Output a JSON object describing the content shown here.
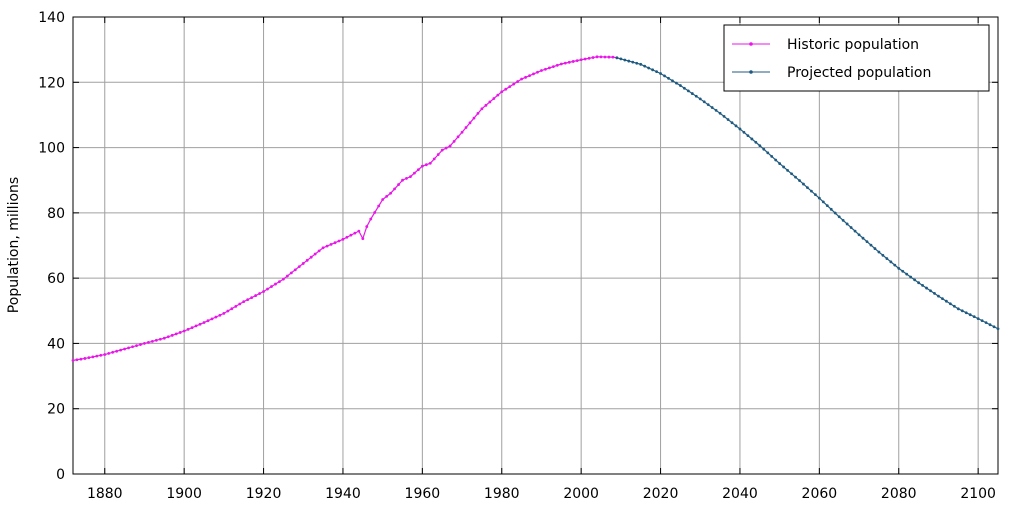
{
  "chart_data": {
    "type": "line",
    "title": "",
    "xlabel": "",
    "ylabel": "Population, millions",
    "xlim": [
      1872,
      2105
    ],
    "ylim": [
      0,
      140
    ],
    "x_ticks": [
      1880,
      1900,
      1920,
      1940,
      1960,
      1980,
      2000,
      2020,
      2040,
      2060,
      2080,
      2100
    ],
    "y_ticks": [
      0,
      20,
      40,
      60,
      80,
      100,
      120,
      140
    ],
    "grid": true,
    "legend_position": "top-right",
    "series": [
      {
        "name": "Historic population",
        "color": "#e817e8",
        "x": [
          1872,
          1875,
          1880,
          1885,
          1890,
          1895,
          1900,
          1905,
          1910,
          1915,
          1920,
          1925,
          1930,
          1935,
          1940,
          1943,
          1944,
          1945,
          1946,
          1947,
          1950,
          1952,
          1955,
          1957,
          1960,
          1962,
          1965,
          1967,
          1970,
          1975,
          1980,
          1985,
          1990,
          1995,
          2000,
          2004,
          2008,
          2009
        ],
        "y": [
          34.8,
          35.4,
          36.6,
          38.3,
          40.0,
          41.6,
          43.8,
          46.4,
          49.2,
          52.8,
          55.9,
          59.7,
          64.5,
          69.3,
          71.9,
          73.8,
          74.4,
          72.1,
          75.8,
          78.1,
          84.1,
          86.0,
          90.0,
          91.1,
          94.3,
          95.2,
          99.2,
          100.5,
          104.7,
          111.9,
          117.1,
          121.0,
          123.6,
          125.6,
          126.9,
          127.8,
          127.7,
          127.5
        ]
      },
      {
        "name": "Projected population",
        "color": "#1f5a80",
        "x": [
          2009,
          2015,
          2020,
          2025,
          2030,
          2035,
          2040,
          2045,
          2050,
          2055,
          2060,
          2065,
          2070,
          2075,
          2080,
          2085,
          2090,
          2095,
          2100,
          2105
        ],
        "y": [
          127.5,
          125.5,
          122.7,
          119.0,
          114.9,
          110.5,
          105.7,
          100.6,
          95.1,
          89.9,
          84.5,
          78.8,
          73.3,
          68.0,
          63.0,
          58.6,
          54.5,
          50.6,
          47.6,
          44.5
        ]
      }
    ]
  }
}
